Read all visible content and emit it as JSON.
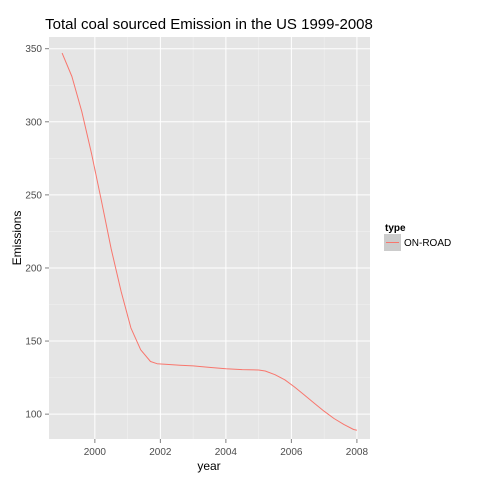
{
  "chart_data": {
    "type": "line",
    "title": "Total coal sourced Emission in the US 1999-2008",
    "xlabel": "year",
    "ylabel": "Emissions",
    "xlim": [
      1998.6,
      2008.4
    ],
    "ylim": [
      83,
      358
    ],
    "x_ticks": [
      2000,
      2002,
      2004,
      2006,
      2008
    ],
    "y_ticks": [
      100,
      150,
      200,
      250,
      300,
      350
    ],
    "grid": true,
    "legend": {
      "title": "type",
      "position": "right"
    },
    "series": [
      {
        "name": "ON-ROAD",
        "color": "#F8766D",
        "x": [
          1999.0,
          1999.3,
          1999.6,
          1999.9,
          2000.2,
          2000.5,
          2000.8,
          2001.1,
          2001.4,
          2001.7,
          2001.9,
          2002.2,
          2002.6,
          2003.0,
          2003.5,
          2004.0,
          2004.5,
          2005.0,
          2005.2,
          2005.5,
          2005.8,
          2006.1,
          2006.4,
          2006.7,
          2007.0,
          2007.3,
          2007.6,
          2007.9,
          2008.0
        ],
        "y": [
          347,
          331,
          307,
          278,
          246,
          213,
          184,
          159,
          144,
          136,
          134.5,
          134,
          133.5,
          133,
          132,
          131,
          130.5,
          130.2,
          129.5,
          127,
          123.5,
          118.5,
          113,
          107.5,
          102,
          97,
          93,
          89.5,
          89
        ]
      }
    ]
  }
}
